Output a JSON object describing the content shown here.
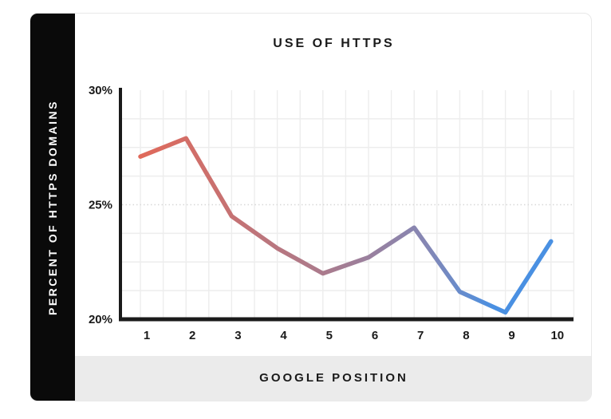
{
  "chart_data": {
    "type": "line",
    "title": "USE OF HTTPS",
    "ylabel": "PERCENT OF HTTPS DOMAINS",
    "xlabel": "GOOGLE POSITION",
    "x": [
      1,
      2,
      3,
      4,
      5,
      6,
      7,
      8,
      9,
      10
    ],
    "xtick_labels": [
      "1",
      "2",
      "3",
      "4",
      "5",
      "6",
      "7",
      "8",
      "9",
      "10"
    ],
    "values": [
      27.1,
      27.9,
      24.5,
      23.1,
      22.0,
      22.7,
      24.0,
      21.2,
      20.3,
      23.4
    ],
    "ylim": [
      20,
      30
    ],
    "yticks": [
      {
        "value": 30,
        "label": "30%"
      },
      {
        "value": 25,
        "label": "25%"
      },
      {
        "value": 20,
        "label": "20%"
      }
    ],
    "grid": {
      "on": true,
      "y_divisions": 8,
      "x_subdivisions_per_position": 2,
      "dotted_y_value": 25
    },
    "legend": null,
    "line_gradient_stops": [
      {
        "offset": 0,
        "color": "#e0695a"
      },
      {
        "offset": 0.45,
        "color": "#aa7b8d"
      },
      {
        "offset": 0.7,
        "color": "#8487b5"
      },
      {
        "offset": 0.86,
        "color": "#4a90e2"
      },
      {
        "offset": 1,
        "color": "#4a90e2"
      }
    ]
  },
  "colors": {
    "sidebar_bg": "#0a0a0a",
    "footer_bg": "#ebebeb",
    "card_border": "#e8e8e8",
    "axis": "#1a1a1a",
    "grid": "#ededed",
    "grid_dotted": "#d8d8d8",
    "tick_text": "#1a1a1a",
    "line_start": "#e0695a",
    "line_end": "#4a90e2"
  }
}
